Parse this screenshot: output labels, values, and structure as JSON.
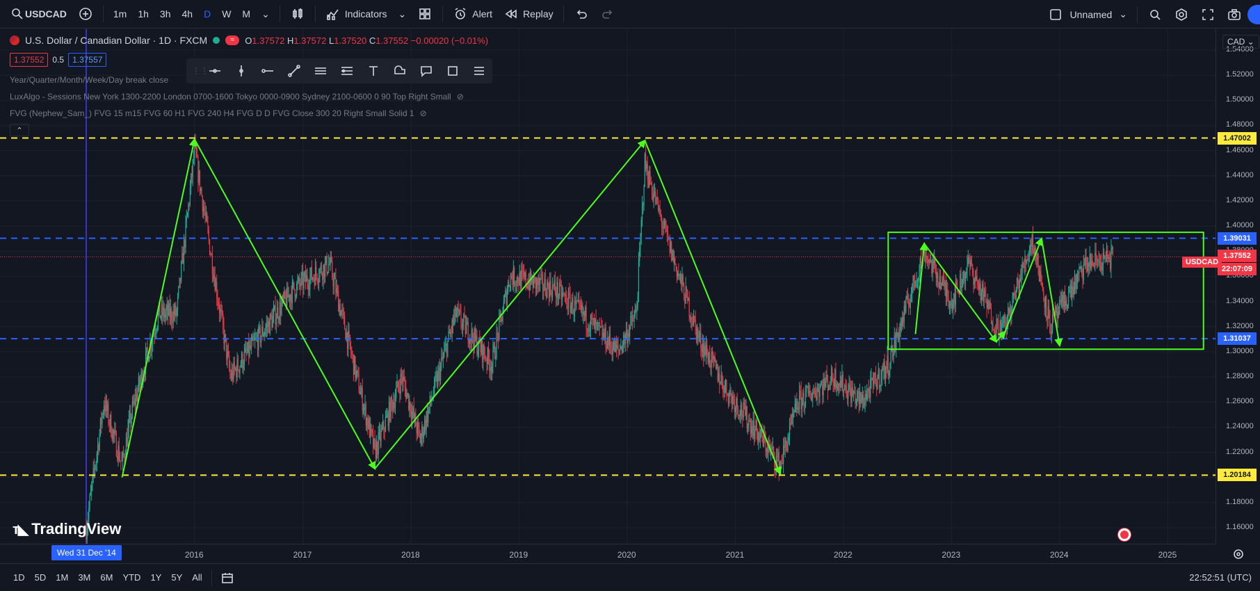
{
  "toolbar": {
    "symbol": "USDCAD",
    "intervals": [
      "1m",
      "1h",
      "3h",
      "4h",
      "D",
      "W",
      "M"
    ],
    "active_interval": "D",
    "indicators_label": "Indicators",
    "alert_label": "Alert",
    "replay_label": "Replay",
    "layout_name": "Unnamed"
  },
  "legend": {
    "title": "U.S. Dollar / Canadian Dollar · 1D · FXCM",
    "o_label": "O",
    "o_value": "1.37572",
    "h_label": "H",
    "h_value": "1.37572",
    "l_label": "L",
    "l_value": "1.37520",
    "c_label": "C",
    "c_value": "1.37552",
    "change": "−0.00020 (−0.01%)",
    "bid": "1.37552",
    "spread": "0.5",
    "ask": "1.37557"
  },
  "indicators": [
    "Year/Quarter/Month/Week/Day break close",
    "LuxAlgo - Sessions New York 1300-2200 London 0700-1600 Tokyo 0000-0900 Sydney 2100-0600 0 90 Top Right Small",
    "FVG (Nephew_Sam_) FVG 15 m15 FVG 60 H1 FVG 240 H4 FVG D D FVG Close 300 20 Right Small Solid 1"
  ],
  "price_axis": {
    "currency": "CAD",
    "ticks": [
      "1.54000",
      "1.52000",
      "1.50000",
      "1.48000",
      "1.46000",
      "1.44000",
      "1.42000",
      "1.40000",
      "1.38000",
      "1.36000",
      "1.34000",
      "1.32000",
      "1.30000",
      "1.28000",
      "1.26000",
      "1.24000",
      "1.22000",
      "1.20000",
      "1.18000",
      "1.16000"
    ],
    "levels": [
      {
        "label": "1.47002",
        "color": "#ffeb3b"
      },
      {
        "label": "1.39031",
        "color": "#2962ff"
      },
      {
        "label": "1.37552",
        "color": "#f23645"
      },
      {
        "label": "22:07:09",
        "color": "#f23645"
      },
      {
        "label": "1.31037",
        "color": "#2962ff"
      },
      {
        "label": "1.20184",
        "color": "#ffeb3b"
      }
    ],
    "symbol_tag": "USDCAD"
  },
  "time_axis": {
    "years": [
      "2016",
      "2017",
      "2018",
      "2019",
      "2020",
      "2021",
      "2022",
      "2023",
      "2024",
      "2025"
    ],
    "crosshair_date": "Wed 31 Dec '14"
  },
  "bottom": {
    "ranges": [
      "1D",
      "5D",
      "1M",
      "3M",
      "6M",
      "YTD",
      "1Y",
      "5Y",
      "All"
    ],
    "clock": "22:52:51 (UTC)"
  },
  "brand": "TradingView",
  "colors": {
    "background": "#131722",
    "up": "#22ab94",
    "down": "#f23645",
    "drawing": "#4cff1f",
    "support": "#ffeb3b",
    "range": "#2962ff"
  },
  "chart_data": {
    "type": "candlestick",
    "x_range": [
      "2014-12-31",
      "2025-06"
    ],
    "y_range": [
      1.15,
      1.55
    ],
    "horizontal_levels": [
      1.47002,
      1.39031,
      1.31037,
      1.20184
    ],
    "last_price": 1.37552,
    "zigzag_path": [
      {
        "date": "2015-05",
        "price": 1.2
      },
      {
        "date": "2016-01",
        "price": 1.469
      },
      {
        "date": "2017-09",
        "price": 1.207
      },
      {
        "date": "2020-03",
        "price": 1.468
      },
      {
        "date": "2021-06",
        "price": 1.203
      }
    ],
    "range_box": {
      "from": "2022-06",
      "to": "2025-05",
      "top": 1.395,
      "bottom": 1.302
    },
    "swing_path": [
      {
        "date": "2022-09",
        "price": 1.314
      },
      {
        "date": "2022-10",
        "price": 1.386
      },
      {
        "date": "2023-06",
        "price": 1.308
      },
      {
        "date": "2023-07",
        "price": 1.316
      },
      {
        "date": "2023-11",
        "price": 1.39
      },
      {
        "date": "2024-01",
        "price": 1.305
      }
    ]
  }
}
